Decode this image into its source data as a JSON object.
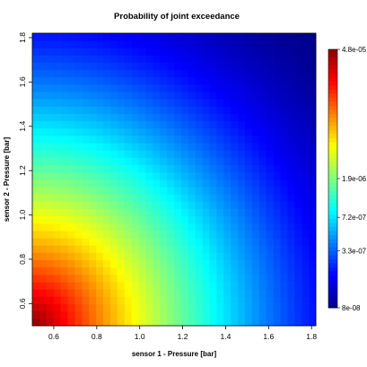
{
  "chart_data": {
    "type": "heatmap",
    "title": "Probability of joint exceedance",
    "xlabel": "sensor 1 - Pressure [bar]",
    "ylabel": "sensor 2 - Pressure [bar]",
    "xlim": [
      0.5,
      1.82
    ],
    "ylim": [
      0.5,
      1.82
    ],
    "x_ticks": [
      "0.6",
      "0.8",
      "1.0",
      "1.2",
      "1.4",
      "1.6",
      "1.8"
    ],
    "y_ticks": [
      "0.6",
      "0.8",
      "1.0",
      "1.2",
      "1.4",
      "1.6",
      "1.8"
    ],
    "grid_cells": 40,
    "value_range": [
      8e-08,
      4.8e-05
    ],
    "colorbar": {
      "scale": "log",
      "ticks": [
        {
          "label": "4.8e-05",
          "value": 4.8e-05
        },
        {
          "label": "1.9e-06",
          "value": 1.9e-06
        },
        {
          "label": "7.2e-07",
          "value": 7.2e-07
        },
        {
          "label": "3.3e-07",
          "value": 3.3e-07
        },
        {
          "label": "8e-08",
          "value": 8e-08
        }
      ],
      "palette": [
        "#00008b",
        "#0000ff",
        "#0080ff",
        "#00ffff",
        "#80ff80",
        "#ffff00",
        "#ff8000",
        "#ff0000",
        "#8b0000"
      ]
    },
    "grid": false,
    "legend": "right"
  }
}
